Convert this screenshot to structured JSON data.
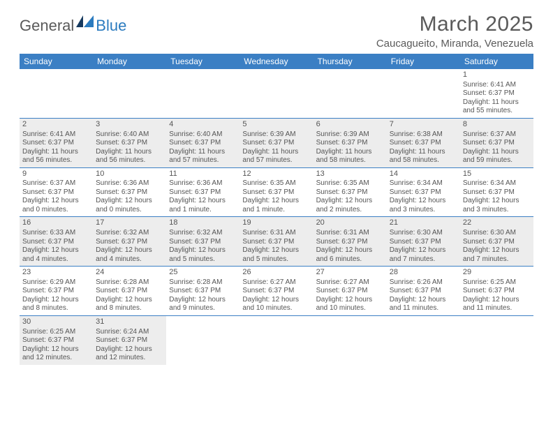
{
  "header": {
    "logo_part1": "General",
    "logo_part2": "Blue",
    "month_title": "March 2025",
    "location": "Caucagueito, Miranda, Venezuela"
  },
  "styling": {
    "header_bg": "#3b7fc4",
    "header_text": "#ffffff",
    "shade_bg": "#ededed",
    "border_color": "#3b7fc4",
    "body_text": "#555555",
    "title_text": "#5a5a5a",
    "logo_gray": "#5a5a5a",
    "logo_blue": "#2b7bbf",
    "page_bg": "#ffffff",
    "day_header_fontsize": 12,
    "daynum_fontsize": 11,
    "info_fontsize": 10,
    "title_fontsize": 30,
    "location_fontsize": 15
  },
  "day_headers": [
    "Sunday",
    "Monday",
    "Tuesday",
    "Wednesday",
    "Thursday",
    "Friday",
    "Saturday"
  ],
  "weeks": [
    [
      {
        "day": "",
        "sunrise": "",
        "sunset": "",
        "daylight": "",
        "shade": false
      },
      {
        "day": "",
        "sunrise": "",
        "sunset": "",
        "daylight": "",
        "shade": false
      },
      {
        "day": "",
        "sunrise": "",
        "sunset": "",
        "daylight": "",
        "shade": false
      },
      {
        "day": "",
        "sunrise": "",
        "sunset": "",
        "daylight": "",
        "shade": false
      },
      {
        "day": "",
        "sunrise": "",
        "sunset": "",
        "daylight": "",
        "shade": false
      },
      {
        "day": "",
        "sunrise": "",
        "sunset": "",
        "daylight": "",
        "shade": false
      },
      {
        "day": "1",
        "sunrise": "Sunrise: 6:41 AM",
        "sunset": "Sunset: 6:37 PM",
        "daylight": "Daylight: 11 hours and 55 minutes.",
        "shade": false
      }
    ],
    [
      {
        "day": "2",
        "sunrise": "Sunrise: 6:41 AM",
        "sunset": "Sunset: 6:37 PM",
        "daylight": "Daylight: 11 hours and 56 minutes.",
        "shade": true
      },
      {
        "day": "3",
        "sunrise": "Sunrise: 6:40 AM",
        "sunset": "Sunset: 6:37 PM",
        "daylight": "Daylight: 11 hours and 56 minutes.",
        "shade": true
      },
      {
        "day": "4",
        "sunrise": "Sunrise: 6:40 AM",
        "sunset": "Sunset: 6:37 PM",
        "daylight": "Daylight: 11 hours and 57 minutes.",
        "shade": true
      },
      {
        "day": "5",
        "sunrise": "Sunrise: 6:39 AM",
        "sunset": "Sunset: 6:37 PM",
        "daylight": "Daylight: 11 hours and 57 minutes.",
        "shade": true
      },
      {
        "day": "6",
        "sunrise": "Sunrise: 6:39 AM",
        "sunset": "Sunset: 6:37 PM",
        "daylight": "Daylight: 11 hours and 58 minutes.",
        "shade": true
      },
      {
        "day": "7",
        "sunrise": "Sunrise: 6:38 AM",
        "sunset": "Sunset: 6:37 PM",
        "daylight": "Daylight: 11 hours and 58 minutes.",
        "shade": true
      },
      {
        "day": "8",
        "sunrise": "Sunrise: 6:37 AM",
        "sunset": "Sunset: 6:37 PM",
        "daylight": "Daylight: 11 hours and 59 minutes.",
        "shade": true
      }
    ],
    [
      {
        "day": "9",
        "sunrise": "Sunrise: 6:37 AM",
        "sunset": "Sunset: 6:37 PM",
        "daylight": "Daylight: 12 hours and 0 minutes.",
        "shade": false
      },
      {
        "day": "10",
        "sunrise": "Sunrise: 6:36 AM",
        "sunset": "Sunset: 6:37 PM",
        "daylight": "Daylight: 12 hours and 0 minutes.",
        "shade": false
      },
      {
        "day": "11",
        "sunrise": "Sunrise: 6:36 AM",
        "sunset": "Sunset: 6:37 PM",
        "daylight": "Daylight: 12 hours and 1 minute.",
        "shade": false
      },
      {
        "day": "12",
        "sunrise": "Sunrise: 6:35 AM",
        "sunset": "Sunset: 6:37 PM",
        "daylight": "Daylight: 12 hours and 1 minute.",
        "shade": false
      },
      {
        "day": "13",
        "sunrise": "Sunrise: 6:35 AM",
        "sunset": "Sunset: 6:37 PM",
        "daylight": "Daylight: 12 hours and 2 minutes.",
        "shade": false
      },
      {
        "day": "14",
        "sunrise": "Sunrise: 6:34 AM",
        "sunset": "Sunset: 6:37 PM",
        "daylight": "Daylight: 12 hours and 3 minutes.",
        "shade": false
      },
      {
        "day": "15",
        "sunrise": "Sunrise: 6:34 AM",
        "sunset": "Sunset: 6:37 PM",
        "daylight": "Daylight: 12 hours and 3 minutes.",
        "shade": false
      }
    ],
    [
      {
        "day": "16",
        "sunrise": "Sunrise: 6:33 AM",
        "sunset": "Sunset: 6:37 PM",
        "daylight": "Daylight: 12 hours and 4 minutes.",
        "shade": true
      },
      {
        "day": "17",
        "sunrise": "Sunrise: 6:32 AM",
        "sunset": "Sunset: 6:37 PM",
        "daylight": "Daylight: 12 hours and 4 minutes.",
        "shade": true
      },
      {
        "day": "18",
        "sunrise": "Sunrise: 6:32 AM",
        "sunset": "Sunset: 6:37 PM",
        "daylight": "Daylight: 12 hours and 5 minutes.",
        "shade": true
      },
      {
        "day": "19",
        "sunrise": "Sunrise: 6:31 AM",
        "sunset": "Sunset: 6:37 PM",
        "daylight": "Daylight: 12 hours and 5 minutes.",
        "shade": true
      },
      {
        "day": "20",
        "sunrise": "Sunrise: 6:31 AM",
        "sunset": "Sunset: 6:37 PM",
        "daylight": "Daylight: 12 hours and 6 minutes.",
        "shade": true
      },
      {
        "day": "21",
        "sunrise": "Sunrise: 6:30 AM",
        "sunset": "Sunset: 6:37 PM",
        "daylight": "Daylight: 12 hours and 7 minutes.",
        "shade": true
      },
      {
        "day": "22",
        "sunrise": "Sunrise: 6:30 AM",
        "sunset": "Sunset: 6:37 PM",
        "daylight": "Daylight: 12 hours and 7 minutes.",
        "shade": true
      }
    ],
    [
      {
        "day": "23",
        "sunrise": "Sunrise: 6:29 AM",
        "sunset": "Sunset: 6:37 PM",
        "daylight": "Daylight: 12 hours and 8 minutes.",
        "shade": false
      },
      {
        "day": "24",
        "sunrise": "Sunrise: 6:28 AM",
        "sunset": "Sunset: 6:37 PM",
        "daylight": "Daylight: 12 hours and 8 minutes.",
        "shade": false
      },
      {
        "day": "25",
        "sunrise": "Sunrise: 6:28 AM",
        "sunset": "Sunset: 6:37 PM",
        "daylight": "Daylight: 12 hours and 9 minutes.",
        "shade": false
      },
      {
        "day": "26",
        "sunrise": "Sunrise: 6:27 AM",
        "sunset": "Sunset: 6:37 PM",
        "daylight": "Daylight: 12 hours and 10 minutes.",
        "shade": false
      },
      {
        "day": "27",
        "sunrise": "Sunrise: 6:27 AM",
        "sunset": "Sunset: 6:37 PM",
        "daylight": "Daylight: 12 hours and 10 minutes.",
        "shade": false
      },
      {
        "day": "28",
        "sunrise": "Sunrise: 6:26 AM",
        "sunset": "Sunset: 6:37 PM",
        "daylight": "Daylight: 12 hours and 11 minutes.",
        "shade": false
      },
      {
        "day": "29",
        "sunrise": "Sunrise: 6:25 AM",
        "sunset": "Sunset: 6:37 PM",
        "daylight": "Daylight: 12 hours and 11 minutes.",
        "shade": false
      }
    ],
    [
      {
        "day": "30",
        "sunrise": "Sunrise: 6:25 AM",
        "sunset": "Sunset: 6:37 PM",
        "daylight": "Daylight: 12 hours and 12 minutes.",
        "shade": true
      },
      {
        "day": "31",
        "sunrise": "Sunrise: 6:24 AM",
        "sunset": "Sunset: 6:37 PM",
        "daylight": "Daylight: 12 hours and 12 minutes.",
        "shade": true
      },
      {
        "day": "",
        "sunrise": "",
        "sunset": "",
        "daylight": "",
        "shade": false
      },
      {
        "day": "",
        "sunrise": "",
        "sunset": "",
        "daylight": "",
        "shade": false
      },
      {
        "day": "",
        "sunrise": "",
        "sunset": "",
        "daylight": "",
        "shade": false
      },
      {
        "day": "",
        "sunrise": "",
        "sunset": "",
        "daylight": "",
        "shade": false
      },
      {
        "day": "",
        "sunrise": "",
        "sunset": "",
        "daylight": "",
        "shade": false
      }
    ]
  ]
}
